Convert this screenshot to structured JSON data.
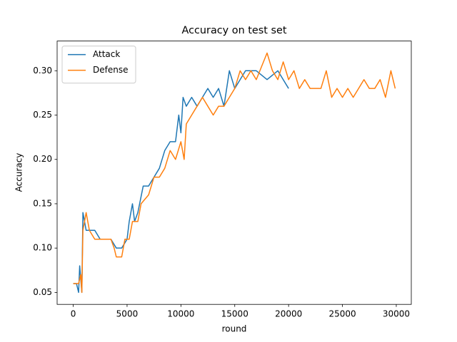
{
  "chart_data": {
    "type": "line",
    "title": "Accuracy on test set",
    "x_label": "round",
    "y_label": "Accuracy",
    "xlim": [
      -1495,
      31395
    ],
    "ylim": [
      0.0365,
      0.3335
    ],
    "xticks": [
      0,
      5000,
      10000,
      15000,
      20000,
      25000,
      30000
    ],
    "yticks": [
      0.05,
      {
        "value": 0.1,
        "label": "0.10"
      },
      0.15,
      {
        "value": 0.2,
        "label": "0.20"
      },
      0.25,
      {
        "value": 0.3,
        "label": "0.30"
      }
    ],
    "legend": "upper left",
    "series": [
      {
        "name": "Attack",
        "color": "#1f77b4",
        "x": [
          0,
          300,
          500,
          600,
          800,
          900,
          1200,
          2000,
          2500,
          3000,
          3500,
          4000,
          4500,
          5000,
          5200,
          5500,
          5700,
          6000,
          6500,
          7000,
          7500,
          8000,
          8500,
          9000,
          9500,
          9800,
          10000,
          10200,
          10500,
          11000,
          11500,
          12000,
          12500,
          13000,
          13500,
          14000,
          14500,
          15000,
          15500,
          16000,
          17000,
          18000,
          19000,
          19500,
          20000
        ],
        "values": [
          0.06,
          0.06,
          0.05,
          0.08,
          0.05,
          0.14,
          0.12,
          0.12,
          0.11,
          0.11,
          0.11,
          0.1,
          0.1,
          0.11,
          0.13,
          0.15,
          0.13,
          0.14,
          0.17,
          0.17,
          0.18,
          0.19,
          0.21,
          0.22,
          0.22,
          0.25,
          0.23,
          0.27,
          0.26,
          0.27,
          0.26,
          0.27,
          0.28,
          0.27,
          0.28,
          0.26,
          0.3,
          0.28,
          0.29,
          0.3,
          0.3,
          0.29,
          0.3,
          0.29,
          0.28
        ]
      },
      {
        "name": "Defense",
        "color": "#ff7f0e",
        "x": [
          0,
          500,
          700,
          800,
          900,
          1200,
          1500,
          2000,
          3000,
          3500,
          3800,
          4000,
          4500,
          4800,
          5200,
          5500,
          6000,
          6300,
          7000,
          7500,
          8000,
          8500,
          9000,
          9500,
          10000,
          10300,
          10500,
          11000,
          11500,
          12000,
          12500,
          13000,
          13500,
          14000,
          14500,
          15000,
          15500,
          16000,
          16500,
          17000,
          18000,
          18500,
          19000,
          19500,
          20000,
          20500,
          21000,
          21500,
          22000,
          23000,
          23500,
          24000,
          24500,
          25000,
          25500,
          26000,
          27000,
          27500,
          28000,
          28500,
          29000,
          29500,
          29900
        ],
        "values": [
          0.06,
          0.06,
          0.07,
          0.05,
          0.12,
          0.14,
          0.12,
          0.11,
          0.11,
          0.11,
          0.1,
          0.09,
          0.09,
          0.11,
          0.11,
          0.13,
          0.13,
          0.15,
          0.16,
          0.18,
          0.18,
          0.19,
          0.21,
          0.2,
          0.22,
          0.2,
          0.24,
          0.25,
          0.26,
          0.27,
          0.26,
          0.25,
          0.26,
          0.26,
          0.27,
          0.28,
          0.3,
          0.29,
          0.3,
          0.29,
          0.32,
          0.3,
          0.29,
          0.31,
          0.29,
          0.3,
          0.28,
          0.29,
          0.28,
          0.28,
          0.3,
          0.27,
          0.28,
          0.27,
          0.28,
          0.27,
          0.29,
          0.28,
          0.28,
          0.29,
          0.27,
          0.3,
          0.28
        ]
      }
    ]
  }
}
